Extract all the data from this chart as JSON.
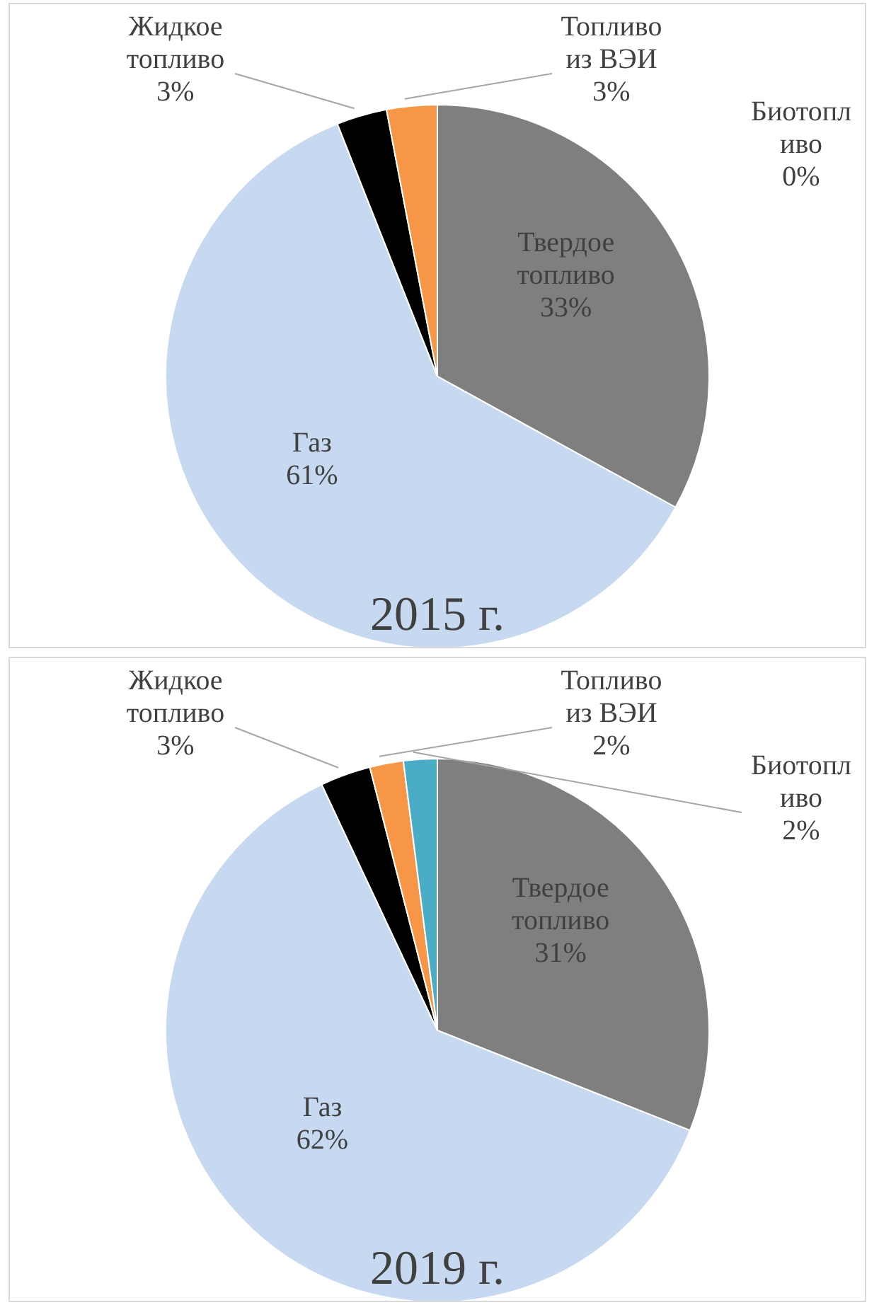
{
  "chart_data": [
    {
      "type": "pie",
      "title": "2015 г.",
      "categories": [
        "Твердое топливо",
        "Газ",
        "Жидкое топливо",
        "Топливо из ВЭИ",
        "Биотопливо"
      ],
      "values": [
        33,
        61,
        3,
        3,
        0
      ],
      "value_labels": [
        "33%",
        "61%",
        "3%",
        "3%",
        "0%"
      ],
      "colors": [
        "#7f7f7f",
        "#c6d9f0",
        "#000000",
        "#f79646",
        "#4bacc6"
      ],
      "legend": false
    },
    {
      "type": "pie",
      "title": "2019 г.",
      "categories": [
        "Твердое топливо",
        "Газ",
        "Жидкое топливо",
        "Топливо из ВЭИ",
        "Биотопливо"
      ],
      "values": [
        31,
        62,
        3,
        2,
        2
      ],
      "value_labels": [
        "31%",
        "62%",
        "3%",
        "2%",
        "2%"
      ],
      "colors": [
        "#7f7f7f",
        "#c6d9f0",
        "#000000",
        "#f79646",
        "#4bacc6"
      ],
      "legend": false
    }
  ]
}
